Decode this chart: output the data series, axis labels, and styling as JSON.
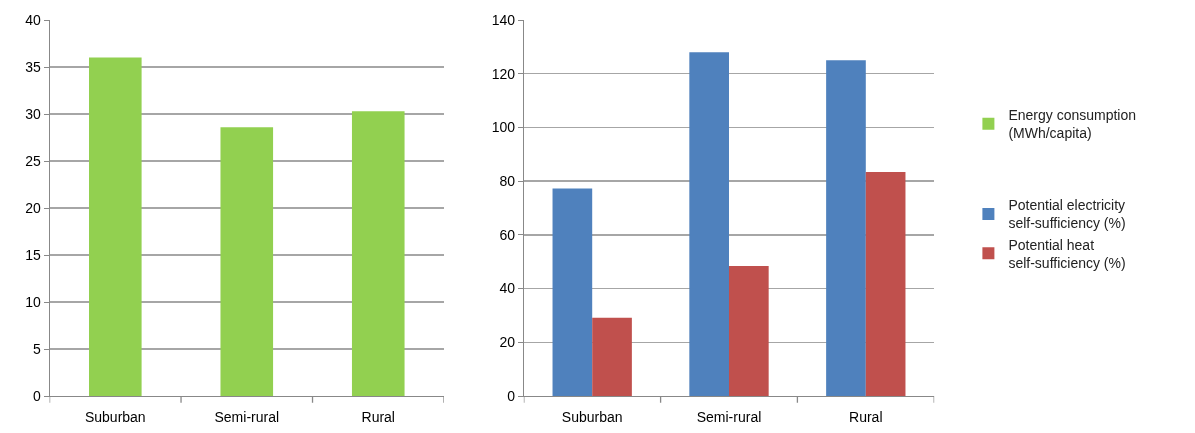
{
  "chart_data": [
    {
      "type": "bar",
      "categories": [
        "Suburban",
        "Semi-rural",
        "Rural"
      ],
      "series": [
        {
          "name": "Energy consumption (MWh/capita)",
          "color": "#92d050",
          "values": [
            36.0,
            28.6,
            30.3
          ]
        }
      ],
      "ylim": [
        0,
        40
      ],
      "yticks": [
        0,
        5,
        10,
        15,
        20,
        25,
        30,
        35,
        40
      ],
      "grid": "y",
      "legend": "right"
    },
    {
      "type": "bar",
      "categories": [
        "Suburban",
        "Semi-rural",
        "Rural"
      ],
      "series": [
        {
          "name": "Potential electricity self-sufficiency (%)",
          "color": "#4f81bd",
          "values": [
            77.3,
            128,
            125
          ]
        },
        {
          "name": "Potential heat self-sufficiency (%)",
          "color": "#c0504d",
          "values": [
            29.1,
            48.4,
            83.4
          ]
        }
      ],
      "ylim": [
        0,
        140
      ],
      "yticks": [
        0,
        20,
        40,
        60,
        80,
        100,
        120,
        140
      ],
      "grid": "y",
      "legend": "right"
    }
  ]
}
